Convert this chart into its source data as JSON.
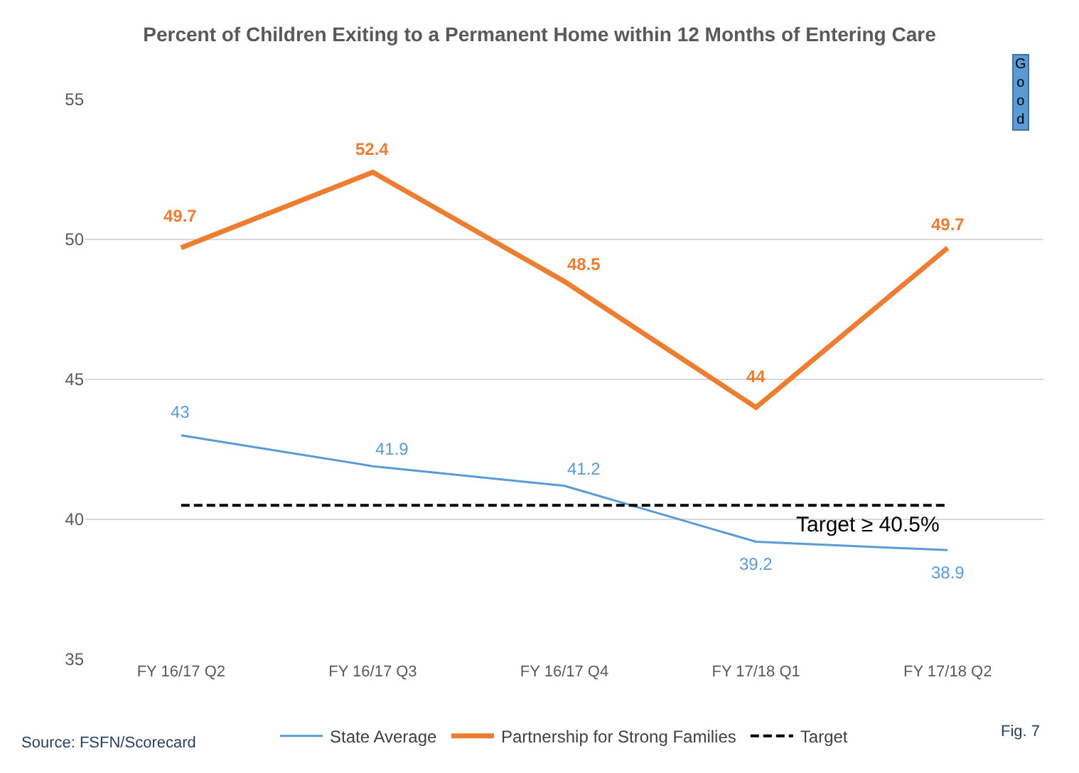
{
  "chart_data": {
    "type": "line",
    "title": "Percent of Children Exiting to a Permanent Home within 12 Months of Entering Care",
    "categories": [
      "FY 16/17 Q2",
      "FY 16/17 Q3",
      "FY 16/17 Q4",
      "FY 17/18 Q1",
      "FY 17/18 Q2"
    ],
    "series": [
      {
        "name": "State Average",
        "color": "#5b9bd5",
        "values": [
          43,
          41.9,
          41.2,
          39.2,
          38.9
        ],
        "value_labels": [
          "43",
          "41.9",
          "41.2",
          "39.2",
          "38.9"
        ]
      },
      {
        "name": "Partnership for Strong Families",
        "color": "#ed7d31",
        "values": [
          49.7,
          52.4,
          48.5,
          44,
          49.7
        ],
        "value_labels": [
          "49.7",
          "52.4",
          "48.5",
          "44",
          "49.7"
        ]
      },
      {
        "name": "Target",
        "color": "#000000",
        "values": [
          40.5,
          40.5,
          40.5,
          40.5,
          40.5
        ],
        "line_style": "dashed"
      }
    ],
    "ylim": [
      35,
      55
    ],
    "yticks": [
      35,
      40,
      45,
      50,
      55
    ],
    "grid": "y",
    "legend": "bottom",
    "marker": "none",
    "annotations": [
      "Target ≥ 40.5%",
      "Good",
      "Source: FSFN/Scorecard",
      "Fig. 7"
    ]
  }
}
